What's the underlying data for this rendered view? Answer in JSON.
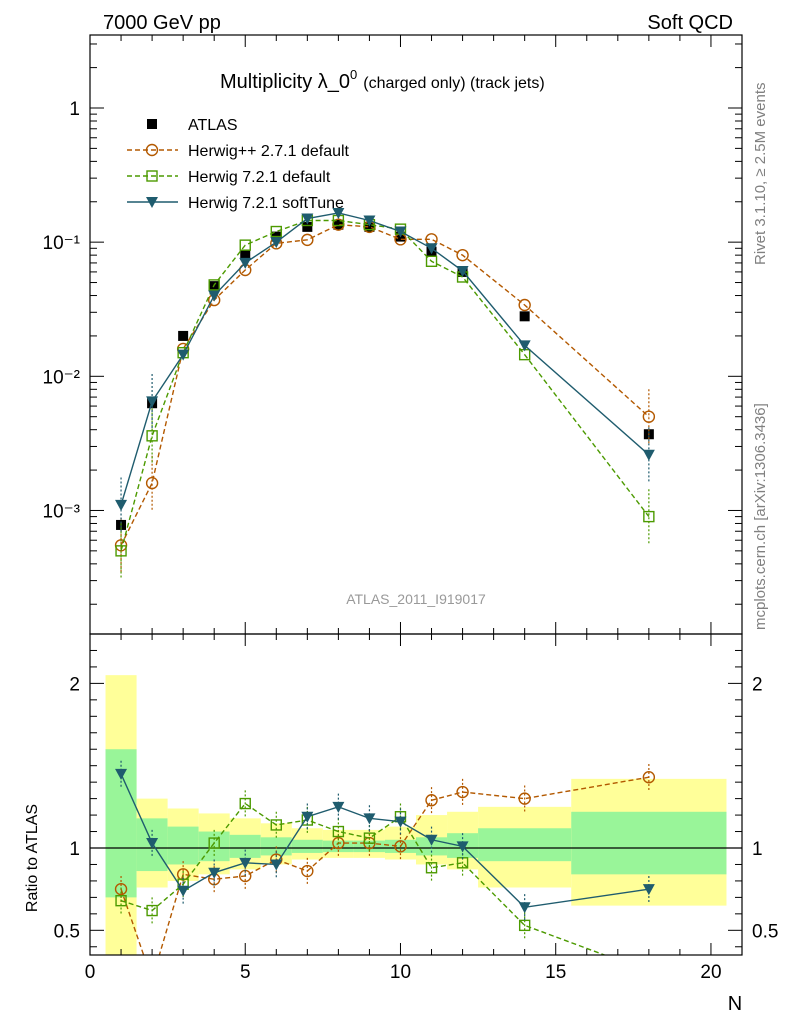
{
  "header": {
    "left": "7000 GeV pp",
    "right": "Soft QCD"
  },
  "side_labels": {
    "top": "Rivet 3.1.10, ≥ 2.5M events",
    "bottom": "mcplots.cern.ch [arXiv:1306.3436]"
  },
  "analysis_id": "ATLAS_2011_I919017",
  "colors": {
    "atlas": "#000000",
    "herwigpp": "#b35900",
    "herwig721": "#4c9a00",
    "softtune": "#1f5c6e",
    "band_inner": "#99f599",
    "band_outer": "#ffff99"
  },
  "chart_data": [
    {
      "type": "scatter",
      "title": "Multiplicity λ_0",
      "title_sup": "0",
      "title_suffix": "(charged only) (track jets)",
      "yscale": "log",
      "ylim": [
        0.00012,
        3.5
      ],
      "xlim": [
        0,
        21
      ],
      "y_ticks": [
        "10⁻³",
        "10⁻²",
        "10⁻¹",
        "1"
      ],
      "legend_position": "top-left",
      "series": [
        {
          "name": "ATLAS",
          "marker": "filled-square",
          "x": [
            1,
            2,
            3,
            4,
            5,
            6,
            7,
            8,
            9,
            10,
            11,
            12,
            14,
            18
          ],
          "y": [
            0.00078,
            0.0063,
            0.02,
            0.047,
            0.08,
            0.11,
            0.13,
            0.135,
            0.13,
            0.11,
            0.085,
            0.06,
            0.028,
            0.0037
          ]
        },
        {
          "name": "Herwig++ 2.7.1 default",
          "marker": "open-circle",
          "line": "dashed",
          "x": [
            1,
            2,
            3,
            4,
            5,
            6,
            7,
            8,
            9,
            10,
            11,
            12,
            14,
            18
          ],
          "y": [
            0.00055,
            0.0016,
            0.016,
            0.037,
            0.062,
            0.098,
            0.104,
            0.135,
            0.13,
            0.105,
            0.105,
            0.08,
            0.034,
            0.005
          ]
        },
        {
          "name": "Herwig 7.2.1 default",
          "marker": "open-square",
          "line": "dashed",
          "x": [
            1,
            2,
            3,
            4,
            5,
            6,
            7,
            8,
            9,
            10,
            11,
            12,
            14,
            18
          ],
          "y": [
            0.0005,
            0.0036,
            0.015,
            0.048,
            0.095,
            0.12,
            0.145,
            0.145,
            0.135,
            0.125,
            0.072,
            0.055,
            0.0145,
            0.0009
          ]
        },
        {
          "name": "Herwig 7.2.1 softTune",
          "marker": "filled-triangle-down",
          "line": "solid",
          "x": [
            1,
            2,
            3,
            4,
            5,
            6,
            7,
            8,
            9,
            10,
            11,
            12,
            14,
            18
          ],
          "y": [
            0.0011,
            0.0065,
            0.0145,
            0.04,
            0.07,
            0.1,
            0.15,
            0.165,
            0.145,
            0.12,
            0.09,
            0.061,
            0.017,
            0.0026
          ]
        }
      ]
    },
    {
      "type": "line",
      "ylabel": "Ratio to ATLAS",
      "xlabel": "N",
      "ylim": [
        0.35,
        2.3
      ],
      "xlim": [
        0,
        21
      ],
      "x_ticks": [
        "0",
        "5",
        "10",
        "15",
        "20"
      ],
      "y_ticks": [
        "0.5",
        "1",
        "2"
      ],
      "bands": {
        "edges": [
          0.5,
          1.5,
          2.5,
          3.5,
          4.5,
          5.5,
          6.5,
          7.5,
          8.5,
          9.5,
          10.5,
          11.5,
          12.5,
          15.5,
          20.5
        ],
        "inner_lo": [
          0.7,
          0.86,
          0.9,
          0.92,
          0.94,
          0.955,
          0.97,
          0.975,
          0.975,
          0.97,
          0.955,
          0.94,
          0.92,
          0.84
        ],
        "inner_hi": [
          1.6,
          1.18,
          1.13,
          1.1,
          1.08,
          1.065,
          1.05,
          1.045,
          1.045,
          1.05,
          1.065,
          1.09,
          1.12,
          1.22
        ],
        "outer_lo": [
          0.35,
          0.76,
          0.8,
          0.84,
          0.87,
          0.9,
          0.93,
          0.94,
          0.94,
          0.93,
          0.9,
          0.87,
          0.76,
          0.65
        ],
        "outer_hi": [
          2.05,
          1.3,
          1.24,
          1.21,
          1.18,
          1.15,
          1.12,
          1.11,
          1.11,
          1.13,
          1.2,
          1.22,
          1.25,
          1.42
        ]
      },
      "series": [
        {
          "name": "Herwig++ 2.7.1 default",
          "x": [
            1,
            2,
            3,
            4,
            5,
            6,
            7,
            8,
            9,
            10,
            11,
            12,
            14,
            18
          ],
          "y": [
            0.75,
            0.2,
            0.84,
            0.81,
            0.83,
            0.93,
            0.86,
            1.03,
            1.03,
            1.01,
            1.29,
            1.34,
            1.3,
            1.43
          ]
        },
        {
          "name": "Herwig 7.2.1 default",
          "x": [
            1,
            2,
            3,
            4,
            5,
            6,
            7,
            8,
            9,
            10,
            11,
            12,
            14,
            18
          ],
          "y": [
            0.68,
            0.62,
            0.78,
            1.03,
            1.27,
            1.14,
            1.17,
            1.1,
            1.06,
            1.19,
            0.88,
            0.91,
            0.53,
            0.25
          ]
        },
        {
          "name": "Herwig 7.2.1 softTune",
          "x": [
            1,
            2,
            3,
            4,
            5,
            6,
            7,
            8,
            9,
            10,
            11,
            12,
            14,
            18
          ],
          "y": [
            1.45,
            1.03,
            0.74,
            0.85,
            0.91,
            0.9,
            1.19,
            1.25,
            1.18,
            1.16,
            1.05,
            1.01,
            0.64,
            0.75
          ]
        }
      ]
    }
  ]
}
